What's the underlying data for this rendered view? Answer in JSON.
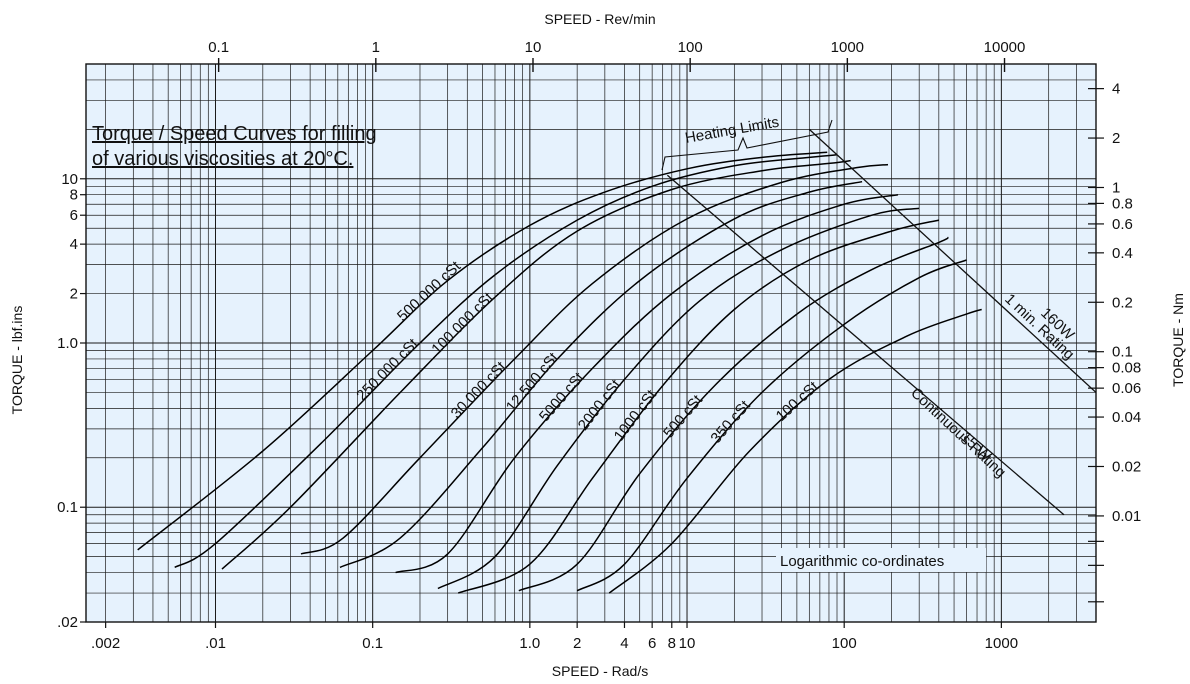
{
  "chart_data": {
    "type": "line",
    "title_lines": [
      "Torque / Speed Curves for filling",
      "of various viscosities at 20°C."
    ],
    "xlabel": "SPEED - Rad/s",
    "x2label": "SPEED - Rev/min",
    "ylabel": "TORQUE - lbf.ins",
    "y2label": "TORQUE - Nm",
    "xscale": "log",
    "yscale": "log",
    "xlim": [
      0.0015,
      4000
    ],
    "ylim": [
      0.02,
      50
    ],
    "grid": true,
    "annotation": "Logarithmic co-ordinates",
    "x_ticks": [
      {
        "v": 0.002,
        "label": ".002"
      },
      {
        "v": 0.01,
        "label": ".01"
      },
      {
        "v": 0.1,
        "label": "0.1"
      },
      {
        "v": 1,
        "label": "1.0"
      },
      {
        "v": 2,
        "label": "2"
      },
      {
        "v": 4,
        "label": "4"
      },
      {
        "v": 6,
        "label": "6"
      },
      {
        "v": 8,
        "label": "8"
      },
      {
        "v": 10,
        "label": "10"
      },
      {
        "v": 100,
        "label": "100"
      },
      {
        "v": 1000,
        "label": "1000"
      }
    ],
    "x2_ticks": [
      {
        "v": 0.1,
        "label": "0.1"
      },
      {
        "v": 1,
        "label": "1"
      },
      {
        "v": 10,
        "label": "10"
      },
      {
        "v": 100,
        "label": "100"
      },
      {
        "v": 1000,
        "label": "1000"
      },
      {
        "v": 10000,
        "label": "10000"
      }
    ],
    "y_ticks": [
      {
        "v": 0.02,
        "label": ".02"
      },
      {
        "v": 0.1,
        "label": "0.1"
      },
      {
        "v": 1,
        "label": "1.0"
      },
      {
        "v": 2,
        "label": "2"
      },
      {
        "v": 4,
        "label": "4"
      },
      {
        "v": 6,
        "label": "6"
      },
      {
        "v": 8,
        "label": "8"
      },
      {
        "v": 10,
        "label": "10"
      }
    ],
    "y2_ticks": [
      {
        "v": 0.01,
        "label": "0.01"
      },
      {
        "v": 0.02,
        "label": "0.02"
      },
      {
        "v": 0.04,
        "label": "0.04"
      },
      {
        "v": 0.06,
        "label": "0.06"
      },
      {
        "v": 0.08,
        "label": "0.08"
      },
      {
        "v": 0.1,
        "label": "0.1"
      },
      {
        "v": 0.2,
        "label": "0.2"
      },
      {
        "v": 0.4,
        "label": "0.4"
      },
      {
        "v": 0.6,
        "label": "0.6"
      },
      {
        "v": 0.8,
        "label": "0.8"
      },
      {
        "v": 1,
        "label": "1"
      },
      {
        "v": 2,
        "label": "2"
      },
      {
        "v": 4,
        "label": "4"
      }
    ],
    "series": [
      {
        "name": "500 000 cSt",
        "points": [
          [
            0.0032,
            0.055
          ],
          [
            0.02,
            0.22
          ],
          [
            0.1,
            0.9
          ],
          [
            0.3,
            2.4
          ],
          [
            1,
            5.2
          ],
          [
            3,
            8.3
          ],
          [
            10,
            11.5
          ],
          [
            30,
            13.5
          ],
          [
            78,
            14.5
          ]
        ]
      },
      {
        "name": "250 000 cSt",
        "points": [
          [
            0.0055,
            0.043
          ],
          [
            0.01,
            0.06
          ],
          [
            0.05,
            0.26
          ],
          [
            0.2,
            1.0
          ],
          [
            0.6,
            2.6
          ],
          [
            2,
            5.6
          ],
          [
            6,
            9
          ],
          [
            20,
            12
          ],
          [
            60,
            13.5
          ],
          [
            90,
            14
          ]
        ]
      },
      {
        "name": "100 000 cSt",
        "points": [
          [
            0.011,
            0.042
          ],
          [
            0.03,
            0.1
          ],
          [
            0.15,
            0.5
          ],
          [
            0.6,
            1.9
          ],
          [
            2,
            4.8
          ],
          [
            8,
            8.6
          ],
          [
            30,
            11.2
          ],
          [
            80,
            12.4
          ],
          [
            110,
            12.9
          ]
        ]
      },
      {
        "name": "30 000 cSt",
        "points": [
          [
            0.035,
            0.052
          ],
          [
            0.065,
            0.065
          ],
          [
            0.2,
            0.2
          ],
          [
            0.8,
            0.8
          ],
          [
            2.5,
            2.3
          ],
          [
            10,
            5.7
          ],
          [
            40,
            9.5
          ],
          [
            120,
            11.7
          ],
          [
            190,
            12.2
          ]
        ]
      },
      {
        "name": "12 500 cSt",
        "points": [
          [
            0.062,
            0.043
          ],
          [
            0.15,
            0.065
          ],
          [
            0.5,
            0.23
          ],
          [
            1.5,
            0.8
          ],
          [
            5,
            2.4
          ],
          [
            20,
            5.7
          ],
          [
            60,
            8.3
          ],
          [
            130,
            9.6
          ]
        ]
      },
      {
        "name": "5000 cSt",
        "points": [
          [
            0.14,
            0.04
          ],
          [
            0.3,
            0.052
          ],
          [
            0.8,
            0.2
          ],
          [
            2.5,
            0.7
          ],
          [
            8,
            2
          ],
          [
            30,
            4.5
          ],
          [
            100,
            7
          ],
          [
            220,
            8
          ]
        ]
      },
      {
        "name": "2000 cSt",
        "points": [
          [
            0.26,
            0.032
          ],
          [
            0.6,
            0.05
          ],
          [
            1.5,
            0.18
          ],
          [
            4,
            0.6
          ],
          [
            12,
            1.8
          ],
          [
            40,
            3.7
          ],
          [
            150,
            6
          ],
          [
            300,
            6.6
          ]
        ]
      },
      {
        "name": "1000 cSt",
        "points": [
          [
            0.35,
            0.03
          ],
          [
            1,
            0.045
          ],
          [
            2.5,
            0.15
          ],
          [
            7,
            0.55
          ],
          [
            20,
            1.6
          ],
          [
            60,
            3.2
          ],
          [
            200,
            4.8
          ],
          [
            400,
            5.6
          ]
        ]
      },
      {
        "name": "500 cSt",
        "points": [
          [
            0.85,
            0.031
          ],
          [
            2,
            0.045
          ],
          [
            5,
            0.16
          ],
          [
            15,
            0.55
          ],
          [
            50,
            1.5
          ],
          [
            150,
            2.8
          ],
          [
            400,
            4.1
          ],
          [
            460,
            4.4
          ]
        ]
      },
      {
        "name": "350 cSt",
        "points": [
          [
            2,
            0.031
          ],
          [
            4,
            0.045
          ],
          [
            10,
            0.15
          ],
          [
            30,
            0.5
          ],
          [
            100,
            1.3
          ],
          [
            300,
            2.5
          ],
          [
            600,
            3.2
          ]
        ]
      },
      {
        "name": "100 cSt",
        "points": [
          [
            3.2,
            0.03
          ],
          [
            8,
            0.06
          ],
          [
            25,
            0.22
          ],
          [
            80,
            0.6
          ],
          [
            250,
            1.1
          ],
          [
            600,
            1.5
          ],
          [
            750,
            1.6
          ]
        ]
      }
    ],
    "heating_limits": {
      "label": "Heating Limits",
      "continuous": {
        "label_line1": "15 W",
        "label_line2": "Continuous Rating",
        "points": [
          [
            7.5,
            10.5
          ],
          [
            2500,
            0.09
          ]
        ]
      },
      "one_min": {
        "label_line1": "160W",
        "label_line2": "1 min. Rating",
        "points": [
          [
            60,
            20
          ],
          [
            4000,
            0.5
          ]
        ]
      }
    }
  },
  "colors": {
    "plot_background": "#e6f2fd",
    "grid": "#1a1a1a",
    "curve": "#000000"
  }
}
